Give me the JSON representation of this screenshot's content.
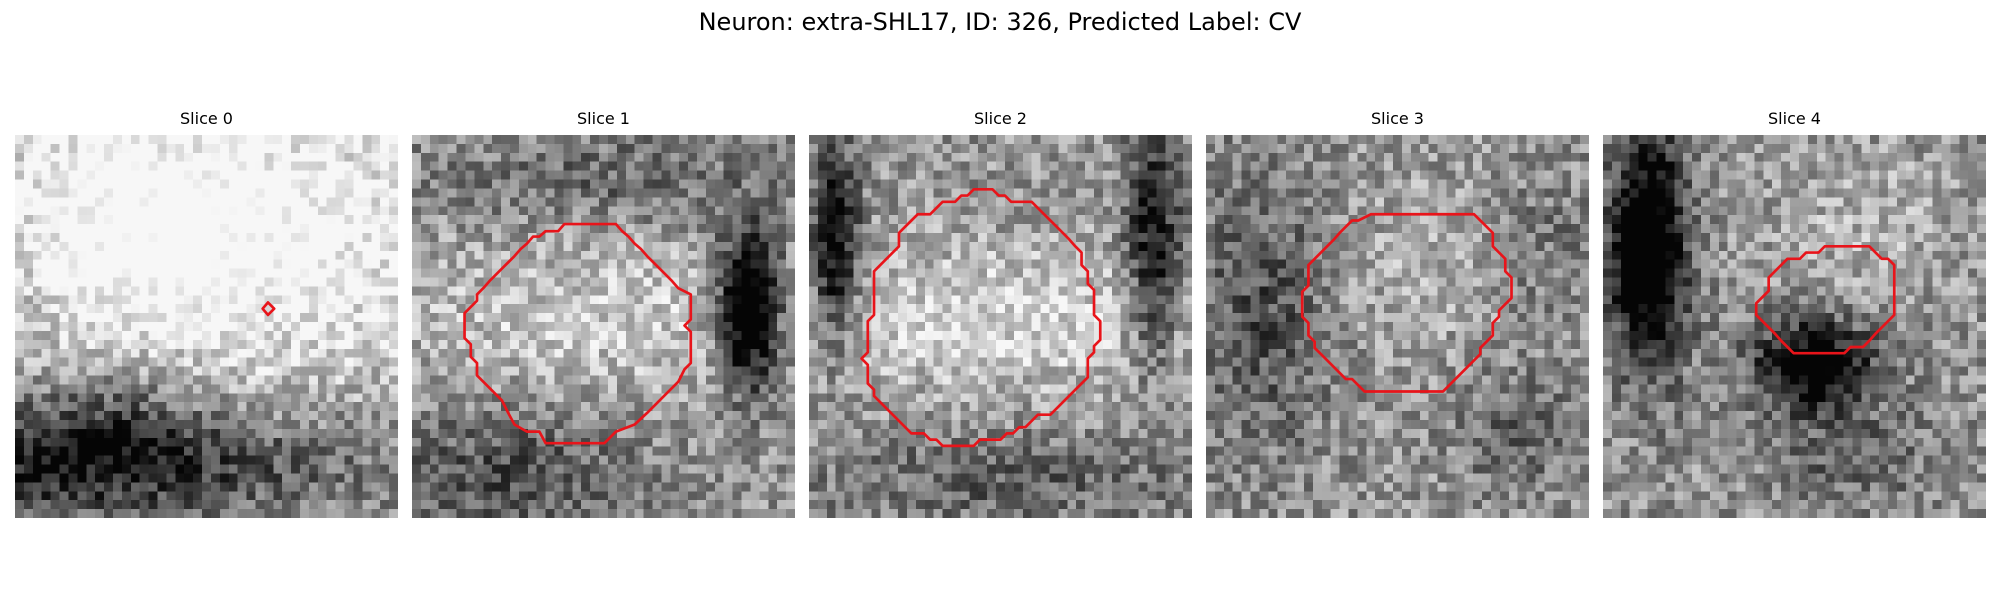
{
  "figure": {
    "title": "Neuron: extra-SHL17, ID: 326, Predicted Label: CV"
  },
  "slices": [
    {
      "label": "Slice 0",
      "roi_contour": [
        [
          28.4,
          18.8
        ],
        [
          29.1,
          19.5
        ],
        [
          28.4,
          20.2
        ],
        [
          27.8,
          19.5
        ]
      ],
      "shading": [
        [
          0.48,
          0.25,
          0.74,
          0.42,
          1.0,
          0.55
        ],
        [
          0.28,
          0.24,
          0.22,
          0.26,
          0.1,
          0.45
        ],
        [
          0.17,
          0.85,
          0.65,
          0.14,
          -1.2,
          0.45
        ],
        [
          0.27,
          0.7,
          0.22,
          0.15,
          -0.6,
          0.35
        ],
        [
          0.0,
          0.4,
          0.12,
          0.2,
          -0.5,
          0.25
        ]
      ]
    },
    {
      "label": "Slice 1",
      "roi_contour": [
        [
          17.8,
          10.0
        ],
        [
          22.9,
          10.0
        ],
        [
          23.6,
          10.8
        ],
        [
          24.3,
          11.4
        ],
        [
          25.0,
          12.2
        ],
        [
          25.7,
          12.8
        ],
        [
          26.4,
          13.6
        ],
        [
          27.1,
          14.3
        ],
        [
          28.5,
          15.7
        ],
        [
          29.2,
          16.4
        ],
        [
          29.9,
          17.2
        ],
        [
          31.3,
          17.9
        ],
        [
          31.3,
          20.7
        ],
        [
          30.6,
          21.4
        ],
        [
          31.3,
          22.1
        ],
        [
          31.3,
          25.6
        ],
        [
          30.6,
          26.3
        ],
        [
          29.9,
          27.7
        ],
        [
          29.2,
          28.4
        ],
        [
          27.8,
          29.8
        ],
        [
          26.4,
          31.2
        ],
        [
          25.0,
          32.5
        ],
        [
          22.9,
          33.3
        ],
        [
          21.6,
          34.6
        ],
        [
          15.0,
          34.6
        ],
        [
          14.3,
          33.3
        ],
        [
          12.9,
          33.3
        ],
        [
          11.5,
          32.5
        ],
        [
          10.8,
          31.2
        ],
        [
          10.1,
          29.8
        ],
        [
          9.4,
          29.1
        ],
        [
          8.7,
          28.4
        ],
        [
          8.0,
          27.7
        ],
        [
          7.3,
          27.0
        ],
        [
          7.3,
          25.6
        ],
        [
          6.6,
          24.9
        ],
        [
          6.6,
          23.5
        ],
        [
          5.9,
          22.8
        ],
        [
          5.9,
          20.0
        ],
        [
          6.6,
          19.3
        ],
        [
          7.3,
          18.6
        ],
        [
          7.3,
          17.9
        ],
        [
          8.0,
          17.2
        ],
        [
          8.7,
          16.4
        ],
        [
          9.4,
          15.7
        ],
        [
          10.1,
          15.0
        ],
        [
          10.8,
          14.3
        ],
        [
          11.5,
          13.6
        ],
        [
          12.2,
          12.8
        ],
        [
          12.9,
          12.2
        ],
        [
          13.6,
          11.4
        ],
        [
          14.3,
          11.4
        ],
        [
          15.0,
          10.8
        ],
        [
          16.4,
          10.8
        ],
        [
          17.1,
          10.0
        ]
      ],
      "shading": [
        [
          0.5,
          0.48,
          0.62,
          0.22,
          1.0,
          0.22
        ],
        [
          0.88,
          0.45,
          0.08,
          0.2,
          -1.6,
          0.6
        ],
        [
          0.25,
          0.88,
          0.32,
          0.18,
          -0.7,
          0.4
        ],
        [
          0.5,
          0.12,
          0.45,
          0.12,
          -0.5,
          0.35
        ]
      ]
    },
    {
      "label": "Slice 2",
      "roi_contour": [
        [
          18.5,
          6.1
        ],
        [
          20.6,
          6.1
        ],
        [
          21.3,
          6.8
        ],
        [
          22.0,
          6.8
        ],
        [
          22.7,
          7.5
        ],
        [
          25.0,
          7.5
        ],
        [
          25.7,
          8.2
        ],
        [
          26.4,
          8.9
        ],
        [
          27.1,
          9.6
        ],
        [
          27.8,
          10.3
        ],
        [
          28.5,
          11.0
        ],
        [
          29.2,
          11.7
        ],
        [
          29.9,
          12.5
        ],
        [
          30.6,
          13.2
        ],
        [
          30.6,
          14.6
        ],
        [
          31.3,
          15.3
        ],
        [
          31.3,
          16.7
        ],
        [
          32.0,
          17.4
        ],
        [
          32.0,
          20.2
        ],
        [
          32.7,
          20.9
        ],
        [
          32.7,
          23.0
        ],
        [
          32.0,
          23.7
        ],
        [
          32.0,
          24.4
        ],
        [
          31.3,
          25.1
        ],
        [
          31.3,
          27.2
        ],
        [
          30.6,
          27.9
        ],
        [
          29.9,
          28.6
        ],
        [
          29.2,
          29.3
        ],
        [
          28.5,
          30.0
        ],
        [
          27.8,
          30.7
        ],
        [
          27.1,
          31.4
        ],
        [
          25.7,
          31.4
        ],
        [
          25.0,
          32.1
        ],
        [
          24.3,
          32.8
        ],
        [
          23.6,
          32.8
        ],
        [
          22.9,
          33.5
        ],
        [
          22.2,
          33.5
        ],
        [
          21.5,
          34.2
        ],
        [
          19.2,
          34.2
        ],
        [
          18.5,
          34.9
        ],
        [
          15.0,
          34.9
        ],
        [
          14.3,
          34.2
        ],
        [
          13.6,
          34.2
        ],
        [
          12.9,
          33.5
        ],
        [
          11.5,
          33.5
        ],
        [
          10.8,
          32.8
        ],
        [
          10.1,
          32.1
        ],
        [
          9.4,
          31.4
        ],
        [
          8.7,
          30.7
        ],
        [
          8.0,
          30.0
        ],
        [
          7.3,
          29.3
        ],
        [
          7.3,
          28.6
        ],
        [
          6.6,
          27.9
        ],
        [
          6.6,
          25.8
        ],
        [
          5.9,
          25.1
        ],
        [
          6.6,
          24.4
        ],
        [
          6.6,
          20.9
        ],
        [
          7.3,
          20.2
        ],
        [
          7.3,
          15.3
        ],
        [
          8.0,
          14.6
        ],
        [
          8.7,
          13.9
        ],
        [
          9.4,
          13.2
        ],
        [
          10.1,
          12.5
        ],
        [
          10.1,
          11.0
        ],
        [
          10.8,
          10.3
        ],
        [
          11.5,
          9.6
        ],
        [
          12.2,
          8.9
        ],
        [
          13.6,
          8.9
        ],
        [
          14.3,
          8.2
        ],
        [
          15.0,
          7.5
        ],
        [
          16.4,
          7.5
        ],
        [
          17.1,
          6.8
        ],
        [
          17.8,
          6.8
        ]
      ],
      "shading": [
        [
          0.5,
          0.48,
          0.68,
          0.2,
          1.1,
          0.24
        ],
        [
          0.07,
          0.3,
          0.06,
          0.25,
          -1.5,
          0.45
        ],
        [
          0.9,
          0.3,
          0.07,
          0.3,
          -1.3,
          0.45
        ],
        [
          0.5,
          0.9,
          0.45,
          0.12,
          -0.6,
          0.35
        ]
      ]
    },
    {
      "label": "Slice 3",
      "roi_contour": [
        [
          18.5,
          8.9
        ],
        [
          30.1,
          8.9
        ],
        [
          30.8,
          9.6
        ],
        [
          31.5,
          10.3
        ],
        [
          32.2,
          11.0
        ],
        [
          32.2,
          12.5
        ],
        [
          32.9,
          13.2
        ],
        [
          33.6,
          13.9
        ],
        [
          33.6,
          15.3
        ],
        [
          34.3,
          16.0
        ],
        [
          34.3,
          18.3
        ],
        [
          33.6,
          19.0
        ],
        [
          32.9,
          19.7
        ],
        [
          32.9,
          20.4
        ],
        [
          32.2,
          21.1
        ],
        [
          32.2,
          22.5
        ],
        [
          30.8,
          23.9
        ],
        [
          30.8,
          24.6
        ],
        [
          29.4,
          26.0
        ],
        [
          28.7,
          26.7
        ],
        [
          28.0,
          27.4
        ],
        [
          27.3,
          28.1
        ],
        [
          26.6,
          28.8
        ],
        [
          17.8,
          28.8
        ],
        [
          17.1,
          28.1
        ],
        [
          16.4,
          27.4
        ],
        [
          15.7,
          27.4
        ],
        [
          15.0,
          26.7
        ],
        [
          14.3,
          26.0
        ],
        [
          13.6,
          25.3
        ],
        [
          12.9,
          24.6
        ],
        [
          12.2,
          23.9
        ],
        [
          12.2,
          23.2
        ],
        [
          11.5,
          22.5
        ],
        [
          11.5,
          21.1
        ],
        [
          10.8,
          20.4
        ],
        [
          10.8,
          17.6
        ],
        [
          11.5,
          16.9
        ],
        [
          11.5,
          14.6
        ],
        [
          12.2,
          13.9
        ],
        [
          12.9,
          13.2
        ],
        [
          13.6,
          12.5
        ],
        [
          14.3,
          11.8
        ],
        [
          15.0,
          11.0
        ],
        [
          15.7,
          10.3
        ],
        [
          16.4,
          9.6
        ],
        [
          17.1,
          9.6
        ]
      ],
      "shading": [
        [
          0.15,
          0.45,
          0.18,
          0.35,
          -0.8,
          0.35
        ],
        [
          0.82,
          0.78,
          0.15,
          0.15,
          -0.7,
          0.3
        ],
        [
          0.9,
          0.3,
          0.15,
          0.2,
          -0.5,
          0.25
        ],
        [
          0.55,
          0.35,
          0.3,
          0.25,
          0.4,
          0.25
        ]
      ]
    },
    {
      "label": "Slice 4",
      "roi_contour": [
        [
          24.9,
          12.5
        ],
        [
          29.9,
          12.5
        ],
        [
          30.6,
          13.2
        ],
        [
          31.3,
          13.9
        ],
        [
          32.0,
          13.9
        ],
        [
          32.7,
          14.6
        ],
        [
          32.7,
          20.2
        ],
        [
          32.0,
          20.9
        ],
        [
          31.3,
          21.6
        ],
        [
          30.6,
          22.3
        ],
        [
          29.9,
          23.1
        ],
        [
          29.2,
          23.8
        ],
        [
          27.8,
          23.8
        ],
        [
          27.1,
          24.5
        ],
        [
          21.4,
          24.5
        ],
        [
          20.7,
          23.8
        ],
        [
          20.0,
          23.1
        ],
        [
          19.3,
          22.3
        ],
        [
          18.6,
          21.6
        ],
        [
          17.9,
          20.9
        ],
        [
          17.2,
          20.2
        ],
        [
          17.2,
          18.9
        ],
        [
          18.6,
          17.5
        ],
        [
          18.6,
          16.0
        ],
        [
          19.3,
          15.3
        ],
        [
          20.0,
          14.6
        ],
        [
          20.7,
          13.9
        ],
        [
          22.1,
          13.9
        ],
        [
          22.8,
          13.2
        ],
        [
          24.2,
          13.2
        ]
      ],
      "shading": [
        [
          0.12,
          0.3,
          0.1,
          0.3,
          -1.6,
          0.55
        ],
        [
          0.55,
          0.6,
          0.16,
          0.12,
          -1.4,
          0.5
        ],
        [
          0.68,
          0.25,
          0.25,
          0.2,
          0.5,
          0.25
        ],
        [
          0.65,
          0.85,
          0.2,
          0.12,
          -0.6,
          0.35
        ]
      ]
    }
  ]
}
